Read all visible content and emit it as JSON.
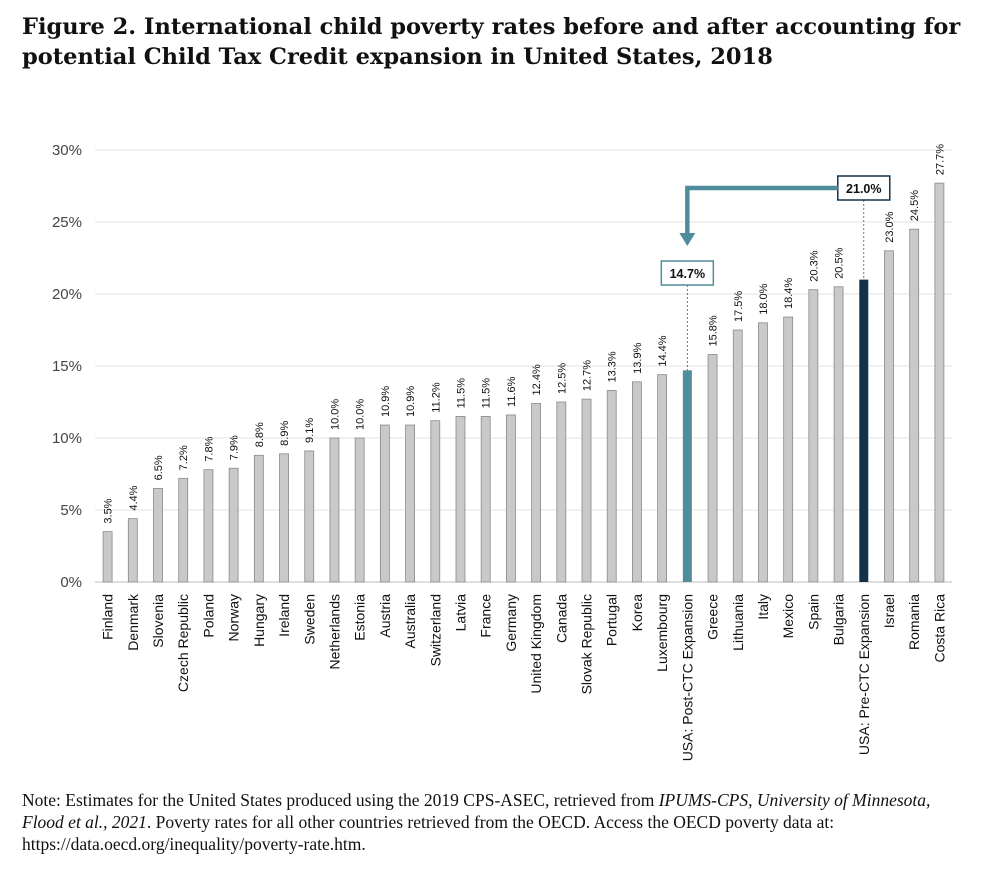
{
  "chart_data": {
    "type": "bar",
    "title": "Figure 2. International child poverty rates before and after accounting for potential Child Tax Credit expansion in United States, 2018",
    "xlabel": "",
    "ylabel": "",
    "ylim": [
      0,
      30
    ],
    "yticks": [
      "0%",
      "5%",
      "10%",
      "15%",
      "20%",
      "25%",
      "30%"
    ],
    "grid": true,
    "legend": "none",
    "categories": [
      "Finland",
      "Denmark",
      "Slovenia",
      "Czech Republic",
      "Poland",
      "Norway",
      "Hungary",
      "Ireland",
      "Sweden",
      "Netherlands",
      "Estonia",
      "Austria",
      "Australia",
      "Switzerland",
      "Latvia",
      "France",
      "Germany",
      "United Kingdom",
      "Canada",
      "Slovak Republic",
      "Portugal",
      "Korea",
      "Luxembourg",
      "USA: Post-CTC Expansion",
      "Greece",
      "Lithuania",
      "Italy",
      "Mexico",
      "Spain",
      "Bulgaria",
      "USA: Pre-CTC Expansion",
      "Israel",
      "Romania",
      "Costa Rica"
    ],
    "values": [
      3.5,
      4.4,
      6.5,
      7.2,
      7.8,
      7.9,
      8.8,
      8.9,
      9.1,
      10.0,
      10.0,
      10.9,
      10.9,
      11.2,
      11.5,
      11.5,
      11.6,
      12.4,
      12.5,
      12.7,
      13.3,
      13.9,
      14.4,
      14.7,
      15.8,
      17.5,
      18.0,
      18.4,
      20.3,
      20.5,
      21.0,
      23.0,
      24.5,
      27.7
    ],
    "labels": [
      "3.5%",
      "4.4%",
      "6.5%",
      "7.2%",
      "7.8%",
      "7.9%",
      "8.8%",
      "8.9%",
      "9.1%",
      "10.0%",
      "10.0%",
      "10.9%",
      "10.9%",
      "11.2%",
      "11.5%",
      "11.5%",
      "11.6%",
      "12.4%",
      "12.5%",
      "12.7%",
      "13.3%",
      "13.9%",
      "14.4%",
      "14.7%",
      "15.8%",
      "17.5%",
      "18.0%",
      "18.4%",
      "20.3%",
      "20.5%",
      "21.0%",
      "23.0%",
      "24.5%",
      "27.7%"
    ],
    "highlight": {
      "USA: Post-CTC Expansion": "#4f8c9c",
      "USA: Pre-CTC Expansion": "#13324a"
    },
    "colors": {
      "default_bar": "#c9c9c9",
      "bar_edge": "#8a8a8a",
      "arrow": "#4f8c9c"
    },
    "annotations": {
      "pre_callout": "21.0%",
      "post_callout": "14.7%"
    }
  },
  "note": {
    "lead": "Note: Estimates for the United States produced using the 2019 CPS-ASEC, retrieved from ",
    "source_italic": "IPUMS-CPS, University of Minnesota, Flood et al., 2021",
    "tail": ". Poverty rates for all other countries retrieved from the OECD. Access the OECD poverty data at: https://data.oecd.org/inequality/poverty-rate.htm."
  }
}
